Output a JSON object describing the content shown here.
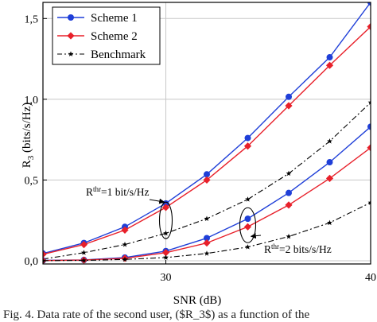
{
  "chart_data": {
    "type": "line",
    "xlabel": "SNR (dB)",
    "ylabel": "R3 (bits/s/Hz)",
    "ylabel_main": "R",
    "ylabel_sub": "3",
    "ylabel_unit": " (bits/s/Hz)",
    "xlim": [
      24,
      40
    ],
    "ylim": [
      -0.02,
      1.6
    ],
    "x_ticks": [
      30,
      40
    ],
    "x_ticks_labels": [
      "30",
      "40"
    ],
    "y_ticks": [
      0.0,
      0.5,
      1.0,
      1.5
    ],
    "y_ticks_labels": [
      "0,0",
      "0,5",
      "1,0",
      "1,5"
    ],
    "grid": true,
    "legend_position": "top-left",
    "x": [
      24,
      26,
      28,
      30,
      32,
      34,
      36,
      38,
      40
    ],
    "series": [
      {
        "name": "Scheme 1",
        "color": "#1f3fd8",
        "marker": "circle",
        "line": "solid",
        "values": [
          0.045,
          0.11,
          0.21,
          0.355,
          0.535,
          0.76,
          1.015,
          1.26,
          1.6
        ]
      },
      {
        "name": "Scheme 2",
        "color": "#e8202a",
        "marker": "diamond",
        "line": "solid",
        "values": [
          0.04,
          0.1,
          0.19,
          0.33,
          0.5,
          0.71,
          0.96,
          1.21,
          1.45
        ]
      },
      {
        "name": "Benchmark",
        "color": "#000000",
        "marker": "star",
        "line": "dashdot",
        "values": [
          0.01,
          0.05,
          0.1,
          0.17,
          0.26,
          0.38,
          0.54,
          0.74,
          0.98
        ]
      },
      {
        "name": "Scheme 1",
        "color": "#1f3fd8",
        "marker": "circle",
        "line": "solid",
        "show_in_legend": false,
        "values": [
          0.002,
          0.005,
          0.02,
          0.06,
          0.14,
          0.26,
          0.42,
          0.61,
          0.83
        ]
      },
      {
        "name": "Scheme 2",
        "color": "#e8202a",
        "marker": "diamond",
        "line": "solid",
        "show_in_legend": false,
        "values": [
          0.001,
          0.004,
          0.015,
          0.05,
          0.11,
          0.21,
          0.345,
          0.51,
          0.7
        ]
      },
      {
        "name": "Benchmark",
        "color": "#000000",
        "marker": "star",
        "line": "dashdot",
        "show_in_legend": false,
        "values": [
          0.0,
          0.002,
          0.008,
          0.02,
          0.045,
          0.085,
          0.15,
          0.235,
          0.36
        ]
      }
    ],
    "annotations": [
      {
        "id": "rthr1",
        "main": "R",
        "sup": "thr",
        "rest": "=1 bit/s/Hz",
        "target_x": 30,
        "target_y": 0.25
      },
      {
        "id": "rthr2",
        "main": "R",
        "sup": "thr",
        "rest": "=2 bits/s/Hz",
        "target_x": 34,
        "target_y": 0.22
      }
    ]
  },
  "caption": "Fig. 4. Data rate of the second user, ($R_3$) as a function of the"
}
